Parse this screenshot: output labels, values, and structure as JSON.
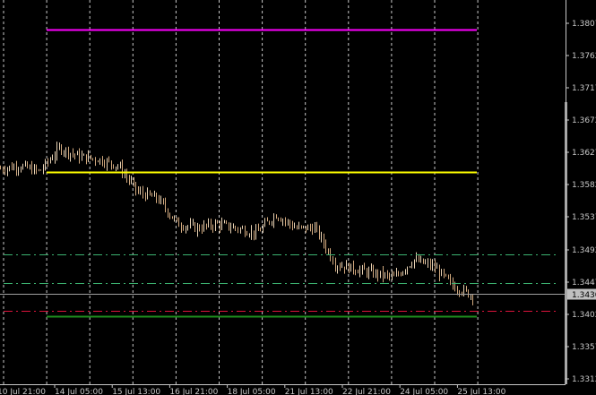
{
  "chart_data": {
    "type": "bar",
    "style": "ohlc-bars",
    "y_ticks": [
      "1.3807",
      "1.3762",
      "1.3717",
      "1.3672",
      "1.3627",
      "1.3582",
      "1.3537",
      "1.3492",
      "1.3447",
      "1.3402",
      "1.3357",
      "1.3312"
    ],
    "ylim": [
      1.3298,
      1.383
    ],
    "x_ticks": [
      "10 Jul 21:00",
      "14 Jul 05:00",
      "15 Jul 13:00",
      "16 Jul 21:00",
      "18 Jul 05:00",
      "21 Jul 13:00",
      "22 Jul 21:00",
      "24 Jul 05:00",
      "25 Jul 13:00"
    ],
    "grid": true,
    "current_price": "1.3430",
    "price_path": [
      1.3604,
      1.3608,
      1.36,
      1.3633,
      1.3621,
      1.3617,
      1.3608,
      1.3571,
      1.3562,
      1.3527,
      1.3521,
      1.3527,
      1.3521,
      1.3514,
      1.354,
      1.3521,
      1.3521,
      1.3471,
      1.3464,
      1.3458,
      1.3452,
      1.3477,
      1.3467,
      1.344,
      1.3427
    ],
    "levels": [
      {
        "price": 1.3798,
        "color": "#ff00ff",
        "style": "solid"
      },
      {
        "price": 1.36,
        "color": "#ffff00",
        "style": "solid"
      },
      {
        "price": 1.3485,
        "color": "#3cb371",
        "style": "dashdot"
      },
      {
        "price": 1.3445,
        "color": "#3cb371",
        "style": "dashdot"
      },
      {
        "price": 1.3406,
        "color": "#dc143c",
        "style": "dashdot"
      },
      {
        "price": 1.3398,
        "color": "#1e8c1e",
        "style": "solid"
      }
    ],
    "colors": {
      "background": "#000000",
      "bars": "#d2a97e",
      "grid": "#c8c8c8",
      "axis_text": "#c8c8c8"
    }
  }
}
